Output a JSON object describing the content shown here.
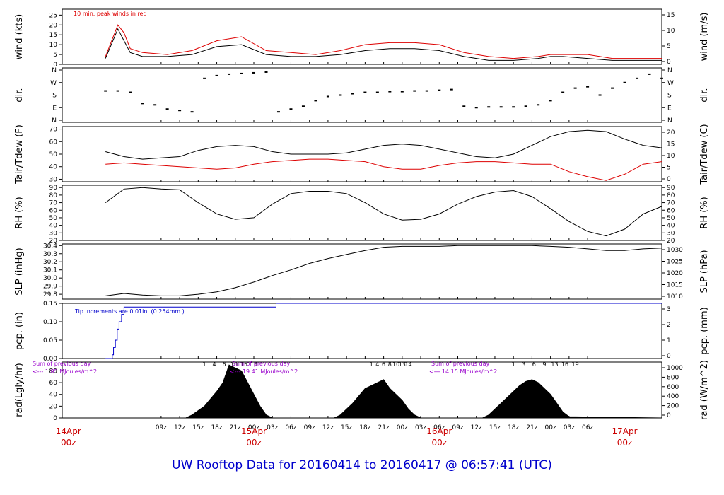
{
  "footer": {
    "title": "UW Rooftop Data for 20160414  to  20160417 @ 06:57:41  (UTC)"
  },
  "annotations": {
    "wind_note": "10 min. peak winds in red",
    "pcp_note": "Tip increments are 0.01in. (0.254mm.)",
    "rad_sum1_a": "Sum of previous day",
    "rad_sum1_b": "<--- 1.85 MJoules/m^2",
    "rad_sum2_a": "Sum of previous day",
    "rad_sum2_b": "<--- 19.41 MJoules/m^2",
    "rad_sum3_a": "Sum of previous day",
    "rad_sum3_b": "<--- 14.15 MJoules/m^2"
  },
  "colors": {
    "primary": "#000000",
    "peak": "#dd0000",
    "precip": "#0000cc",
    "note": "#9900cc",
    "date": "#cc0000"
  },
  "chart_data": [
    {
      "type": "line",
      "panel": "wind",
      "ylabel": "wind (kts)",
      "ylabel_right": "wind (m/s)",
      "ylim": [
        0,
        28
      ],
      "yticks": [
        0,
        5,
        10,
        15,
        20,
        25
      ],
      "yticks_right": [
        0,
        5,
        10,
        15
      ],
      "x_hours": [
        0,
        2,
        3,
        4,
        6,
        10,
        14,
        18,
        22,
        26,
        30,
        34,
        38,
        42,
        46,
        50,
        54,
        58,
        62,
        66,
        70,
        72,
        74,
        78,
        82,
        86,
        90
      ],
      "series": [
        {
          "values": [
            3,
            18,
            12,
            6,
            4,
            4,
            5,
            9,
            10,
            5,
            4,
            4,
            5,
            7,
            8,
            8,
            7,
            4,
            2,
            2,
            3,
            4,
            4,
            3,
            2,
            2,
            2
          ]
        },
        {
          "values": [
            4,
            20,
            16,
            8,
            6,
            5,
            7,
            12,
            14,
            7,
            6,
            5,
            7,
            10,
            11,
            11,
            10,
            6,
            4,
            3,
            4,
            5,
            5,
            5,
            3,
            3,
            3
          ]
        }
      ]
    },
    {
      "type": "scatter",
      "panel": "dir",
      "ylabel": "dir.",
      "ylabel_right": "dir.",
      "yticks": [
        "N",
        "E",
        "S",
        "W",
        "N"
      ],
      "x_hours": [
        0,
        2,
        4,
        6,
        8,
        10,
        12,
        14,
        16,
        18,
        20,
        22,
        24,
        26,
        28,
        30,
        32,
        34,
        36,
        38,
        40,
        42,
        44,
        46,
        48,
        50,
        52,
        54,
        56,
        58,
        60,
        62,
        64,
        66,
        68,
        70,
        72,
        74,
        76,
        78,
        80,
        82,
        84,
        86,
        88,
        90
      ],
      "values_deg": [
        210,
        210,
        200,
        120,
        110,
        80,
        70,
        60,
        300,
        320,
        330,
        335,
        340,
        345,
        60,
        80,
        100,
        140,
        170,
        180,
        190,
        200,
        200,
        205,
        205,
        210,
        210,
        215,
        220,
        100,
        90,
        95,
        95,
        95,
        100,
        110,
        140,
        200,
        230,
        240,
        180,
        230,
        270,
        300,
        330,
        300
      ]
    },
    {
      "type": "line",
      "panel": "temperature",
      "ylabel": "Tair/Tdew (F)",
      "ylabel_right": "Tair/Tdew (C)",
      "ylim": [
        28,
        72
      ],
      "yticks": [
        30,
        40,
        50,
        60,
        70
      ],
      "yticks_right": [
        0,
        5,
        10,
        15,
        20
      ],
      "x_hours": [
        0,
        3,
        6,
        9,
        12,
        15,
        18,
        21,
        24,
        27,
        30,
        33,
        36,
        39,
        42,
        45,
        48,
        51,
        54,
        57,
        60,
        63,
        66,
        69,
        72,
        75,
        78,
        81,
        84,
        87,
        90
      ],
      "series": [
        {
          "name": "Tair",
          "values": [
            52,
            48,
            46,
            47,
            48,
            53,
            56,
            57,
            56,
            52,
            50,
            50,
            50,
            51,
            54,
            57,
            58,
            57,
            54,
            51,
            48,
            47,
            50,
            57,
            64,
            68,
            69,
            68,
            62,
            57,
            55
          ]
        },
        {
          "name": "Tdew",
          "values": [
            42,
            43,
            42,
            41,
            40,
            39,
            38,
            39,
            42,
            44,
            45,
            46,
            46,
            45,
            44,
            40,
            38,
            38,
            41,
            43,
            44,
            44,
            43,
            42,
            42,
            36,
            32,
            29,
            34,
            42,
            44
          ]
        }
      ]
    },
    {
      "type": "line",
      "panel": "rh",
      "ylabel": "RH (%)",
      "ylabel_right": "RH (%)",
      "ylim": [
        20,
        93
      ],
      "yticks": [
        20,
        30,
        40,
        50,
        60,
        70,
        80,
        90
      ],
      "x_hours": [
        0,
        3,
        6,
        9,
        12,
        15,
        18,
        21,
        24,
        27,
        30,
        33,
        36,
        39,
        42,
        45,
        48,
        51,
        54,
        57,
        60,
        63,
        66,
        69,
        72,
        75,
        78,
        81,
        84,
        87,
        90
      ],
      "values": [
        70,
        88,
        90,
        88,
        87,
        70,
        55,
        48,
        50,
        68,
        82,
        85,
        85,
        82,
        70,
        55,
        47,
        48,
        55,
        68,
        78,
        84,
        86,
        78,
        62,
        45,
        32,
        26,
        35,
        55,
        65
      ]
    },
    {
      "type": "line",
      "panel": "slp",
      "ylabel": "SLP (inHg)",
      "ylabel_right": "SLP (hPa)",
      "ylim": [
        29.74,
        30.42
      ],
      "yticks": [
        29.8,
        29.9,
        30.0,
        30.1,
        30.2,
        30.3,
        30.4
      ],
      "yticks_right": [
        1010,
        1015,
        1020,
        1025,
        1030
      ],
      "x_hours": [
        0,
        3,
        6,
        9,
        12,
        15,
        18,
        21,
        24,
        27,
        30,
        33,
        36,
        39,
        42,
        45,
        48,
        51,
        54,
        57,
        60,
        63,
        66,
        69,
        72,
        75,
        78,
        81,
        84,
        87,
        90
      ],
      "values": [
        29.78,
        29.81,
        29.79,
        29.78,
        29.78,
        29.8,
        29.83,
        29.88,
        29.95,
        30.03,
        30.1,
        30.18,
        30.24,
        30.29,
        30.34,
        30.38,
        30.39,
        30.39,
        30.39,
        30.4,
        30.4,
        30.4,
        30.4,
        30.4,
        30.39,
        30.38,
        30.36,
        30.34,
        30.34,
        30.36,
        30.37
      ]
    },
    {
      "type": "line",
      "panel": "precip",
      "ylabel": "pcp. (in)",
      "ylabel_right": "pcp. (mm)",
      "ylim": [
        0,
        0.15
      ],
      "yticks": [
        0.0,
        0.05,
        0.1,
        0.15
      ],
      "yticks_right": [
        0,
        1,
        2,
        3
      ],
      "x_hours": [
        0,
        1.0,
        1.1,
        1.3,
        1.6,
        1.9,
        2.2,
        2.6,
        3.0,
        27.5,
        27.6,
        90
      ],
      "values": [
        0,
        0,
        0.01,
        0.03,
        0.05,
        0.08,
        0.1,
        0.12,
        0.14,
        0.14,
        0.15,
        0.15
      ]
    },
    {
      "type": "area",
      "panel": "radiation",
      "ylabel": "rad(Lgly/hr)",
      "ylabel_right": "rad (W/m^2)",
      "ylim": [
        0,
        95
      ],
      "yticks": [
        0,
        20,
        40,
        60,
        80
      ],
      "yticks_right": [
        0,
        200,
        400,
        600,
        800,
        1000
      ],
      "hour_labels": [
        "1",
        "4",
        "6",
        "10",
        "15",
        "18",
        "1",
        "4",
        "6",
        "8",
        "10",
        "13",
        "14",
        "1",
        "3",
        "6",
        "9",
        "13",
        "16",
        "19"
      ],
      "x_hours": [
        0,
        13,
        14,
        16,
        18,
        19,
        20,
        21,
        22,
        23,
        24,
        25,
        26,
        27,
        37,
        38,
        40,
        42,
        43,
        44,
        45,
        46,
        47,
        48,
        49,
        50,
        51,
        61,
        62,
        64,
        66,
        67,
        68,
        69,
        70,
        71,
        72,
        73,
        74,
        75,
        90
      ],
      "values": [
        0,
        0,
        5,
        20,
        45,
        60,
        90,
        85,
        80,
        60,
        40,
        20,
        5,
        0,
        0,
        5,
        25,
        50,
        55,
        60,
        65,
        50,
        40,
        30,
        15,
        5,
        0,
        0,
        5,
        25,
        45,
        55,
        62,
        65,
        60,
        50,
        40,
        25,
        10,
        2,
        0
      ]
    }
  ],
  "x_axis": {
    "tick_labels": [
      "09z",
      "12z",
      "15z",
      "18z",
      "21z",
      "00z",
      "03z",
      "06z",
      "09z",
      "12z",
      "15z",
      "18z",
      "21z",
      "00z",
      "03z",
      "06z",
      "09z",
      "12z",
      "15z",
      "18z",
      "21z",
      "00z",
      "03z",
      "06z"
    ],
    "tick_hours": [
      9,
      12,
      15,
      18,
      21,
      24,
      27,
      30,
      33,
      36,
      39,
      42,
      45,
      48,
      51,
      54,
      57,
      60,
      63,
      66,
      69,
      72,
      75,
      78
    ],
    "dates": [
      {
        "label": "14Apr",
        "sub": "00z",
        "hour": -6
      },
      {
        "label": "15Apr",
        "sub": "00z",
        "hour": 24
      },
      {
        "label": "16Apr",
        "sub": "00z",
        "hour": 54
      },
      {
        "label": "17Apr",
        "sub": "00z",
        "hour": 84
      }
    ]
  }
}
